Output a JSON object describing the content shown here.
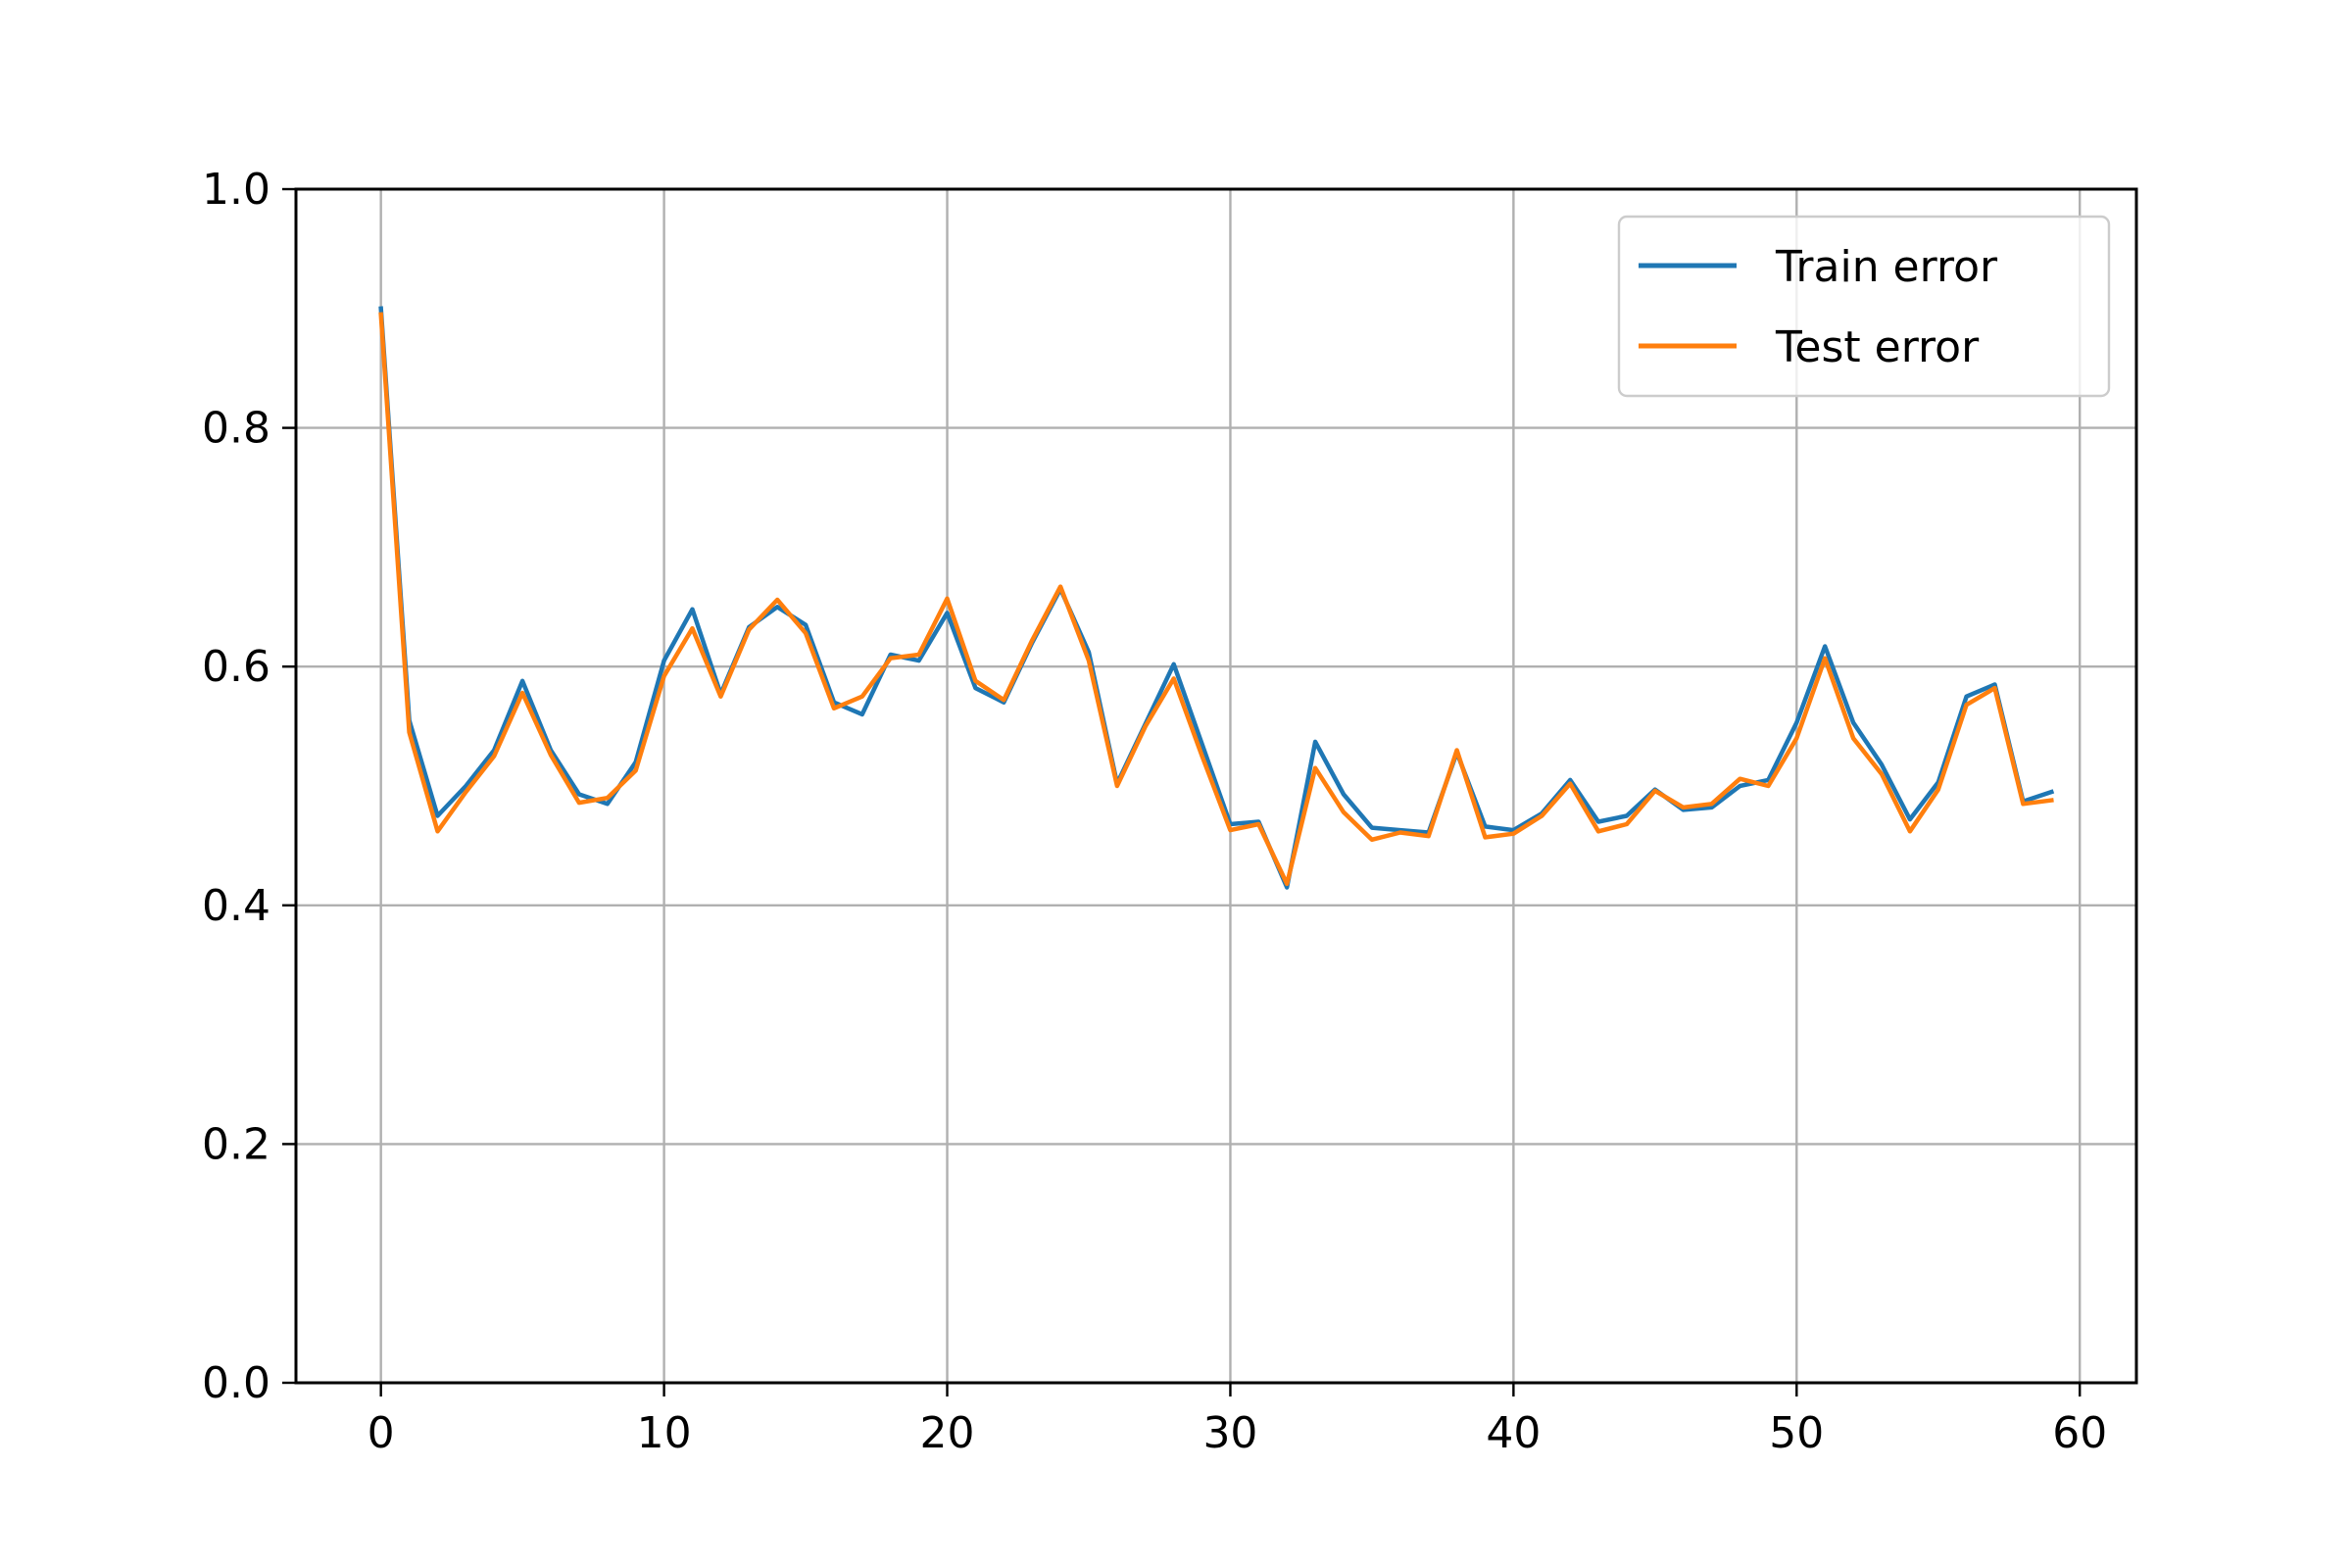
{
  "chart_data": {
    "type": "line",
    "title": "",
    "xlabel": "",
    "ylabel": "",
    "xlim": [
      -3,
      62
    ],
    "ylim": [
      0.0,
      1.0
    ],
    "grid": true,
    "legend_position": "top-right",
    "xticks": [
      0,
      10,
      20,
      30,
      40,
      50,
      60
    ],
    "xtick_labels": [
      "0",
      "10",
      "20",
      "30",
      "40",
      "50",
      "60"
    ],
    "yticks": [
      0.0,
      0.2,
      0.4,
      0.6,
      0.8,
      1.0
    ],
    "ytick_labels": [
      "0.0",
      "0.2",
      "0.4",
      "0.6",
      "0.8",
      "1.0"
    ],
    "x": [
      0,
      1,
      2,
      3,
      4,
      5,
      6,
      7,
      8,
      9,
      10,
      11,
      12,
      13,
      14,
      15,
      16,
      17,
      18,
      19,
      20,
      21,
      22,
      23,
      24,
      25,
      26,
      27,
      28,
      29,
      30,
      31,
      32,
      33,
      34,
      35,
      36,
      37,
      38,
      39,
      40,
      41,
      42,
      43,
      44,
      45,
      46,
      47,
      48,
      49,
      50,
      51,
      52,
      53,
      54,
      55,
      56,
      57,
      58,
      59
    ],
    "series": [
      {
        "name": "Train error",
        "color": "#1f77b4",
        "values": [
          0.9,
          0.555,
          0.475,
          0.5,
          0.53,
          0.588,
          0.53,
          0.493,
          0.485,
          0.52,
          0.605,
          0.648,
          0.577,
          0.633,
          0.65,
          0.635,
          0.57,
          0.56,
          0.61,
          0.605,
          0.645,
          0.582,
          0.57,
          0.62,
          0.665,
          0.612,
          0.502,
          0.552,
          0.602,
          0.535,
          0.468,
          0.47,
          0.415,
          0.537,
          0.493,
          0.465,
          0.463,
          0.461,
          0.528,
          0.466,
          0.463,
          0.477,
          0.505,
          0.47,
          0.475,
          0.497,
          0.48,
          0.482,
          0.5,
          0.505,
          0.553,
          0.617,
          0.553,
          0.518,
          0.472,
          0.503,
          0.575,
          0.585,
          0.487,
          0.495
        ]
      },
      {
        "name": "Test error",
        "color": "#ff7f0e",
        "values": [
          0.895,
          0.545,
          0.462,
          0.495,
          0.525,
          0.578,
          0.526,
          0.486,
          0.49,
          0.513,
          0.592,
          0.632,
          0.575,
          0.631,
          0.656,
          0.628,
          0.565,
          0.575,
          0.607,
          0.61,
          0.657,
          0.588,
          0.572,
          0.622,
          0.667,
          0.605,
          0.5,
          0.55,
          0.59,
          0.525,
          0.463,
          0.468,
          0.418,
          0.515,
          0.478,
          0.455,
          0.461,
          0.458,
          0.53,
          0.457,
          0.46,
          0.475,
          0.502,
          0.462,
          0.468,
          0.496,
          0.482,
          0.485,
          0.506,
          0.5,
          0.54,
          0.607,
          0.54,
          0.51,
          0.462,
          0.497,
          0.568,
          0.582,
          0.485,
          0.488
        ]
      }
    ]
  }
}
